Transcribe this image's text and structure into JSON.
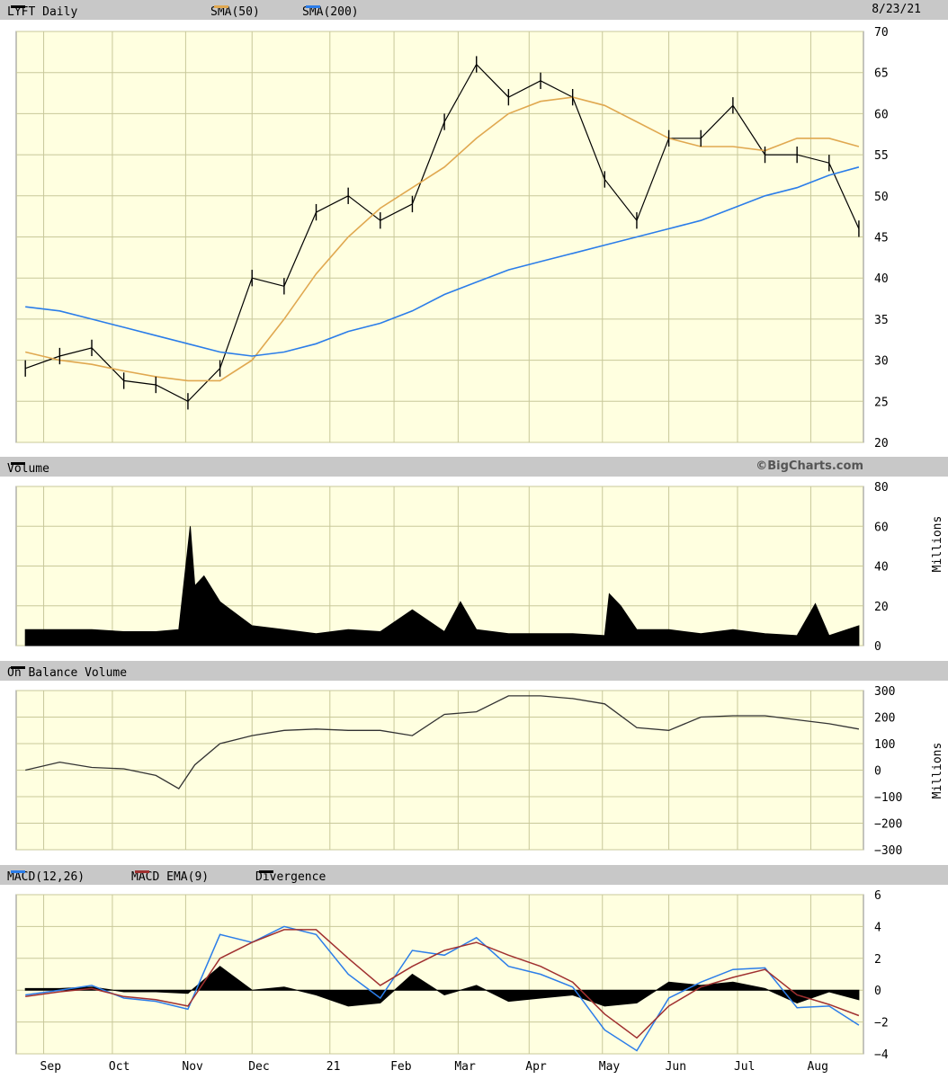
{
  "header": {
    "ticker": "LYFT Daily",
    "sma50": "SMA(50)",
    "sma200": "SMA(200)",
    "date": "8/23/21",
    "volume": "Volume",
    "copyright": "©BigCharts.com",
    "obv": "On Balance Volume",
    "macd": "MACD(12,26)",
    "macd_ema": "MACD EMA(9)",
    "divergence": "Divergence"
  },
  "colors": {
    "background": "#ffffe0",
    "grid": "#c8c89a",
    "price": "#000000",
    "sma50": "#e0a850",
    "sma200": "#2b7de9",
    "macd": "#2b7de9",
    "macd_ema": "#a03030",
    "header_bar": "#c8c8c8"
  },
  "chart_data": [
    {
      "type": "line",
      "title": "LYFT Daily",
      "ylim": [
        20,
        70
      ],
      "yticks": [
        20,
        25,
        30,
        35,
        40,
        45,
        50,
        55,
        60,
        65,
        70
      ],
      "x_labels": [
        "Sep",
        "Oct",
        "Nov",
        "Dec",
        "21",
        "Feb",
        "Mar",
        "Apr",
        "May",
        "Jun",
        "Jul",
        "Aug"
      ],
      "x": [
        "2020-08-24",
        "2020-09-08",
        "2020-09-22",
        "2020-10-06",
        "2020-10-20",
        "2020-11-03",
        "2020-11-17",
        "2020-12-01",
        "2020-12-15",
        "2020-12-29",
        "2021-01-12",
        "2021-01-26",
        "2021-02-09",
        "2021-02-23",
        "2021-03-09",
        "2021-03-23",
        "2021-04-06",
        "2021-04-20",
        "2021-05-04",
        "2021-05-18",
        "2021-06-01",
        "2021-06-15",
        "2021-06-29",
        "2021-07-13",
        "2021-07-27",
        "2021-08-10",
        "2021-08-23"
      ],
      "series": [
        {
          "name": "LYFT Daily",
          "values": [
            29,
            30.5,
            31.5,
            27.5,
            27,
            25,
            29,
            40,
            39,
            48,
            50,
            47,
            49,
            59,
            66,
            62,
            64,
            62,
            52,
            47,
            57,
            57,
            61,
            55,
            55,
            54,
            46
          ]
        },
        {
          "name": "SMA(50)",
          "values": [
            31,
            30,
            29.5,
            28.7,
            28,
            27.5,
            27.5,
            30,
            35,
            40.5,
            45,
            48.5,
            51,
            53.5,
            57,
            60,
            61.5,
            62,
            61,
            59,
            57,
            56,
            56,
            55.5,
            57,
            57,
            56
          ]
        },
        {
          "name": "SMA(200)",
          "values": [
            36.5,
            36,
            35,
            34,
            33,
            32,
            31,
            30.5,
            31,
            32,
            33.5,
            34.5,
            36,
            38,
            39.5,
            41,
            42,
            43,
            44,
            45,
            46,
            47,
            48.5,
            50,
            51,
            52.5,
            53.5
          ]
        }
      ]
    },
    {
      "type": "area",
      "title": "Volume",
      "ylabel": "Millions",
      "ylim": [
        0,
        80
      ],
      "yticks": [
        0,
        20,
        40,
        60,
        80
      ],
      "x": [
        "2020-08-24",
        "2020-09-08",
        "2020-09-22",
        "2020-10-06",
        "2020-10-20",
        "2020-10-30",
        "2020-11-04",
        "2020-11-06",
        "2020-11-10",
        "2020-11-17",
        "2020-12-01",
        "2020-12-15",
        "2020-12-29",
        "2021-01-12",
        "2021-01-26",
        "2021-02-09",
        "2021-02-23",
        "2021-03-02",
        "2021-03-09",
        "2021-03-23",
        "2021-04-06",
        "2021-04-20",
        "2021-05-04",
        "2021-05-06",
        "2021-05-11",
        "2021-05-18",
        "2021-06-01",
        "2021-06-15",
        "2021-06-29",
        "2021-07-13",
        "2021-07-27",
        "2021-08-04",
        "2021-08-10",
        "2021-08-23"
      ],
      "values": [
        8,
        8,
        8,
        7,
        7,
        8,
        60,
        30,
        35,
        22,
        10,
        8,
        6,
        8,
        7,
        18,
        7,
        22,
        8,
        6,
        6,
        6,
        5,
        26,
        20,
        8,
        8,
        6,
        8,
        6,
        5,
        21,
        5,
        10
      ]
    },
    {
      "type": "line",
      "title": "On Balance Volume",
      "ylabel": "Millions",
      "ylim": [
        -300,
        300
      ],
      "yticks": [
        -300,
        -200,
        -100,
        0,
        100,
        200,
        300
      ],
      "x": [
        "2020-08-24",
        "2020-09-08",
        "2020-09-22",
        "2020-10-06",
        "2020-10-20",
        "2020-10-30",
        "2020-11-06",
        "2020-11-17",
        "2020-12-01",
        "2020-12-15",
        "2020-12-29",
        "2021-01-12",
        "2021-01-26",
        "2021-02-09",
        "2021-02-23",
        "2021-03-09",
        "2021-03-23",
        "2021-04-06",
        "2021-04-20",
        "2021-05-04",
        "2021-05-18",
        "2021-06-01",
        "2021-06-15",
        "2021-06-29",
        "2021-07-13",
        "2021-07-27",
        "2021-08-10",
        "2021-08-23"
      ],
      "values": [
        0,
        30,
        10,
        5,
        -20,
        -70,
        20,
        100,
        130,
        150,
        155,
        150,
        150,
        130,
        210,
        220,
        280,
        280,
        270,
        250,
        160,
        150,
        200,
        205,
        205,
        190,
        175,
        155
      ]
    },
    {
      "type": "line",
      "title": "MACD(12,26)",
      "ylim": [
        -4,
        6
      ],
      "yticks": [
        -4,
        -2,
        0,
        2,
        4,
        6
      ],
      "x": [
        "2020-08-24",
        "2020-09-08",
        "2020-09-22",
        "2020-10-06",
        "2020-10-20",
        "2020-11-03",
        "2020-11-17",
        "2020-12-01",
        "2020-12-15",
        "2020-12-29",
        "2021-01-12",
        "2021-01-26",
        "2021-02-09",
        "2021-02-23",
        "2021-03-09",
        "2021-03-23",
        "2021-04-06",
        "2021-04-20",
        "2021-05-04",
        "2021-05-18",
        "2021-06-01",
        "2021-06-15",
        "2021-06-29",
        "2021-07-13",
        "2021-07-27",
        "2021-08-10",
        "2021-08-23"
      ],
      "series": [
        {
          "name": "MACD(12,26)",
          "values": [
            -0.3,
            0,
            0.3,
            -0.5,
            -0.7,
            -1.2,
            3.5,
            3,
            4,
            3.5,
            1,
            -0.5,
            2.5,
            2.2,
            3.3,
            1.5,
            1,
            0.2,
            -2.5,
            -3.8,
            -0.5,
            0.5,
            1.3,
            1.4,
            -1.1,
            -1,
            -2.2
          ]
        },
        {
          "name": "MACD EMA(9)",
          "values": [
            -0.4,
            -0.1,
            0.1,
            -0.4,
            -0.6,
            -1,
            2,
            3,
            3.8,
            3.8,
            2,
            0.3,
            1.5,
            2.5,
            3,
            2.2,
            1.5,
            0.5,
            -1.5,
            -3,
            -1,
            0.2,
            0.8,
            1.3,
            -0.3,
            -0.9,
            -1.6
          ]
        },
        {
          "name": "Divergence",
          "values": [
            0.1,
            0.1,
            0.2,
            -0.1,
            -0.1,
            -0.2,
            1.5,
            0,
            0.2,
            -0.3,
            -1,
            -0.8,
            1,
            -0.3,
            0.3,
            -0.7,
            -0.5,
            -0.3,
            -1,
            -0.8,
            0.5,
            0.3,
            0.5,
            0.1,
            -0.8,
            -0.1,
            -0.6
          ]
        }
      ]
    }
  ]
}
